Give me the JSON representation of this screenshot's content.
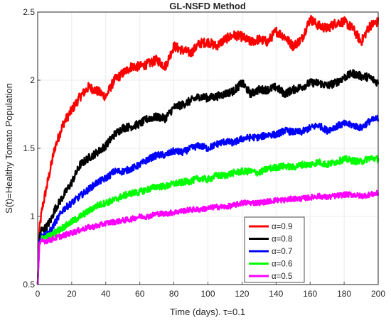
{
  "chart_data": {
    "type": "line",
    "title": "GL-NSFD Method",
    "xlabel": "Time (days). τ=0.1",
    "ylabel": "S(t)=Healthy Tomato Population",
    "xlim": [
      0,
      200
    ],
    "ylim": [
      0.5,
      2.5
    ],
    "xticks": [
      0,
      20,
      40,
      60,
      80,
      100,
      120,
      140,
      160,
      180,
      200
    ],
    "yticks": [
      0.5,
      1,
      1.5,
      2,
      2.5
    ],
    "xtick_labels": [
      "0",
      "20",
      "40",
      "60",
      "80",
      "100",
      "120",
      "140",
      "160",
      "180",
      "200"
    ],
    "ytick_labels": [
      "0.5",
      "1",
      "1.5",
      "2",
      "2.5"
    ],
    "grid": true,
    "legend_position": "bottom-right",
    "initial_value": 0.5,
    "series": [
      {
        "name": "α=0.9",
        "color": "#ff0000",
        "x": [
          0,
          1,
          2,
          3,
          5,
          8,
          10,
          15,
          20,
          25,
          30,
          35,
          40,
          45,
          50,
          55,
          60,
          65,
          70,
          75,
          80,
          85,
          90,
          95,
          100,
          105,
          110,
          115,
          120,
          125,
          130,
          135,
          140,
          145,
          150,
          155,
          160,
          165,
          170,
          175,
          180,
          185,
          190,
          195,
          200
        ],
        "y": [
          0.5,
          0.9,
          1.0,
          1.08,
          1.2,
          1.38,
          1.5,
          1.68,
          1.78,
          1.88,
          1.95,
          1.92,
          1.88,
          2.0,
          2.05,
          2.1,
          2.1,
          2.12,
          2.15,
          2.1,
          2.25,
          2.22,
          2.2,
          2.27,
          2.28,
          2.25,
          2.3,
          2.33,
          2.32,
          2.28,
          2.3,
          2.28,
          2.36,
          2.32,
          2.25,
          2.3,
          2.45,
          2.4,
          2.38,
          2.42,
          2.43,
          2.38,
          2.28,
          2.4,
          2.43
        ]
      },
      {
        "name": "α=0.8",
        "color": "#000000",
        "x": [
          0,
          1,
          2,
          3,
          5,
          8,
          10,
          15,
          20,
          25,
          30,
          35,
          40,
          45,
          50,
          55,
          60,
          65,
          70,
          75,
          80,
          85,
          90,
          95,
          100,
          105,
          110,
          115,
          120,
          125,
          130,
          135,
          140,
          145,
          150,
          155,
          160,
          165,
          170,
          175,
          180,
          185,
          190,
          195,
          200
        ],
        "y": [
          0.5,
          0.85,
          0.9,
          0.9,
          0.92,
          0.98,
          1.05,
          1.15,
          1.25,
          1.38,
          1.43,
          1.47,
          1.52,
          1.6,
          1.65,
          1.66,
          1.68,
          1.72,
          1.73,
          1.72,
          1.8,
          1.82,
          1.85,
          1.88,
          1.87,
          1.88,
          1.9,
          1.92,
          1.98,
          1.9,
          1.93,
          1.93,
          1.95,
          1.9,
          1.93,
          1.95,
          1.98,
          1.98,
          1.96,
          1.98,
          2.02,
          2.05,
          2.03,
          2.02,
          1.98
        ]
      },
      {
        "name": "α=0.7",
        "color": "#0000ff",
        "x": [
          0,
          1,
          2,
          3,
          5,
          8,
          10,
          15,
          20,
          25,
          30,
          35,
          40,
          45,
          50,
          55,
          60,
          65,
          70,
          75,
          80,
          85,
          90,
          95,
          100,
          105,
          110,
          115,
          120,
          125,
          130,
          135,
          140,
          145,
          150,
          155,
          160,
          165,
          170,
          175,
          180,
          185,
          190,
          195,
          200
        ],
        "y": [
          0.5,
          0.82,
          0.85,
          0.86,
          0.87,
          0.9,
          0.95,
          1.05,
          1.1,
          1.15,
          1.2,
          1.25,
          1.28,
          1.33,
          1.33,
          1.35,
          1.38,
          1.42,
          1.45,
          1.45,
          1.48,
          1.47,
          1.5,
          1.52,
          1.5,
          1.53,
          1.55,
          1.54,
          1.57,
          1.58,
          1.58,
          1.6,
          1.6,
          1.63,
          1.62,
          1.62,
          1.65,
          1.67,
          1.63,
          1.66,
          1.68,
          1.67,
          1.65,
          1.7,
          1.72
        ]
      },
      {
        "name": "α=0.6",
        "color": "#00ff00",
        "x": [
          0,
          1,
          2,
          3,
          5,
          8,
          10,
          15,
          20,
          25,
          30,
          35,
          40,
          45,
          50,
          55,
          60,
          65,
          70,
          75,
          80,
          85,
          90,
          95,
          100,
          105,
          110,
          115,
          120,
          125,
          130,
          135,
          140,
          145,
          150,
          155,
          160,
          165,
          170,
          175,
          180,
          185,
          190,
          195,
          200
        ],
        "y": [
          0.5,
          0.81,
          0.83,
          0.84,
          0.85,
          0.86,
          0.88,
          0.92,
          0.96,
          1.0,
          1.04,
          1.08,
          1.1,
          1.12,
          1.15,
          1.17,
          1.18,
          1.2,
          1.22,
          1.22,
          1.24,
          1.25,
          1.26,
          1.28,
          1.27,
          1.3,
          1.3,
          1.32,
          1.33,
          1.33,
          1.32,
          1.35,
          1.36,
          1.37,
          1.36,
          1.38,
          1.38,
          1.4,
          1.38,
          1.4,
          1.42,
          1.41,
          1.4,
          1.43,
          1.42
        ]
      },
      {
        "name": "α=0.5",
        "color": "#ff00ff",
        "x": [
          0,
          1,
          2,
          3,
          5,
          8,
          10,
          15,
          20,
          25,
          30,
          35,
          40,
          45,
          50,
          55,
          60,
          65,
          70,
          75,
          80,
          85,
          90,
          95,
          100,
          105,
          110,
          115,
          120,
          125,
          130,
          135,
          140,
          145,
          150,
          155,
          160,
          165,
          170,
          175,
          180,
          185,
          190,
          195,
          200
        ],
        "y": [
          0.5,
          0.8,
          0.81,
          0.82,
          0.82,
          0.83,
          0.84,
          0.86,
          0.88,
          0.9,
          0.92,
          0.93,
          0.95,
          0.96,
          0.97,
          0.98,
          1.0,
          1.0,
          1.02,
          1.02,
          1.03,
          1.04,
          1.05,
          1.05,
          1.06,
          1.07,
          1.07,
          1.08,
          1.1,
          1.1,
          1.1,
          1.11,
          1.12,
          1.12,
          1.13,
          1.13,
          1.14,
          1.15,
          1.14,
          1.15,
          1.16,
          1.16,
          1.15,
          1.16,
          1.17
        ]
      }
    ]
  }
}
